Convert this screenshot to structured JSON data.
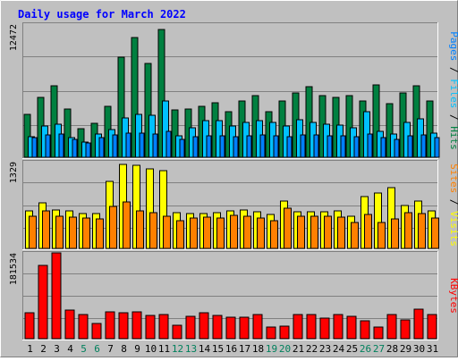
{
  "chart_data": {
    "type": "bar",
    "title": "Daily usage for March 2022",
    "categories": [
      "1",
      "2",
      "3",
      "4",
      "5",
      "6",
      "7",
      "8",
      "9",
      "10",
      "11",
      "12",
      "13",
      "14",
      "15",
      "16",
      "17",
      "18",
      "19",
      "20",
      "21",
      "22",
      "23",
      "24",
      "25",
      "26",
      "27",
      "28",
      "29",
      "30",
      "31"
    ],
    "weekend_categories": [
      "5",
      "6",
      "12",
      "13",
      "19",
      "20",
      "26",
      "27"
    ],
    "panels": [
      {
        "max_label": "12472",
        "ylim": [
          0,
          12472
        ],
        "legend": [
          "Pages",
          "Files",
          "Hits"
        ],
        "series": [
          {
            "name": "Hits",
            "color": "#008040",
            "values": [
              4000,
              5600,
              6700,
              4500,
              2700,
              3200,
              4800,
              9400,
              11200,
              8800,
              12000,
              4400,
              4500,
              4800,
              5100,
              4300,
              5300,
              5800,
              4300,
              5300,
              6000,
              6600,
              5800,
              5600,
              5800,
              5300,
              6800,
              5000,
              6000,
              6700,
              5300
            ]
          },
          {
            "name": "Files",
            "color": "#00C0FF",
            "values": [
              1900,
              2900,
              3100,
              1800,
              1400,
              2200,
              2600,
              3700,
              4000,
              3900,
              5300,
              2000,
              2800,
              3400,
              3400,
              2900,
              3300,
              3400,
              3300,
              2900,
              3500,
              3300,
              3100,
              3000,
              2800,
              4300,
              2400,
              2200,
              3300,
              3600,
              2300
            ]
          },
          {
            "name": "Pages",
            "color": "#0080FF",
            "values": [
              1800,
              2100,
              2200,
              1700,
              1300,
              1800,
              2100,
              2300,
              2300,
              2200,
              2400,
              1700,
              1900,
              2000,
              2000,
              1900,
              2000,
              2100,
              2000,
              1900,
              2100,
              2100,
              2000,
              2000,
              1900,
              2200,
              1800,
              1700,
              2000,
              2100,
              1800
            ]
          }
        ]
      },
      {
        "max_label": "1329",
        "ylim": [
          0,
          1329
        ],
        "legend": [
          "Sites",
          "Visits"
        ],
        "series": [
          {
            "name": "Visits",
            "color": "#FFFF00",
            "values": [
              570,
              700,
              590,
              580,
              540,
              530,
              1030,
              1290,
              1270,
              1220,
              1190,
              550,
              540,
              540,
              550,
              580,
              590,
              560,
              520,
              720,
              560,
              560,
              560,
              580,
              490,
              790,
              850,
              930,
              660,
              720,
              580
            ]
          },
          {
            "name": "Sites",
            "color": "#FF8000",
            "values": [
              490,
              580,
              500,
              480,
              460,
              450,
              640,
              710,
              580,
              550,
              500,
              430,
              470,
              480,
              470,
              510,
              500,
              460,
              420,
              620,
              490,
              490,
              490,
              480,
              400,
              520,
              400,
              450,
              550,
              530,
              470
            ]
          }
        ]
      },
      {
        "max_label": "181534",
        "ylim": [
          0,
          181534
        ],
        "legend": [
          "KBytes"
        ],
        "series": [
          {
            "name": "KBytes",
            "color": "#FF0000",
            "values": [
              55000,
              155000,
              181534,
              60000,
              52000,
              33000,
              56000,
              55000,
              57000,
              49000,
              51000,
              28000,
              47000,
              54000,
              50000,
              46000,
              45000,
              52000,
              25000,
              27000,
              51000,
              52000,
              43000,
              51000,
              48000,
              37000,
              25000,
              52000,
              40000,
              63000,
              51000
            ]
          }
        ]
      }
    ],
    "grid": true
  }
}
